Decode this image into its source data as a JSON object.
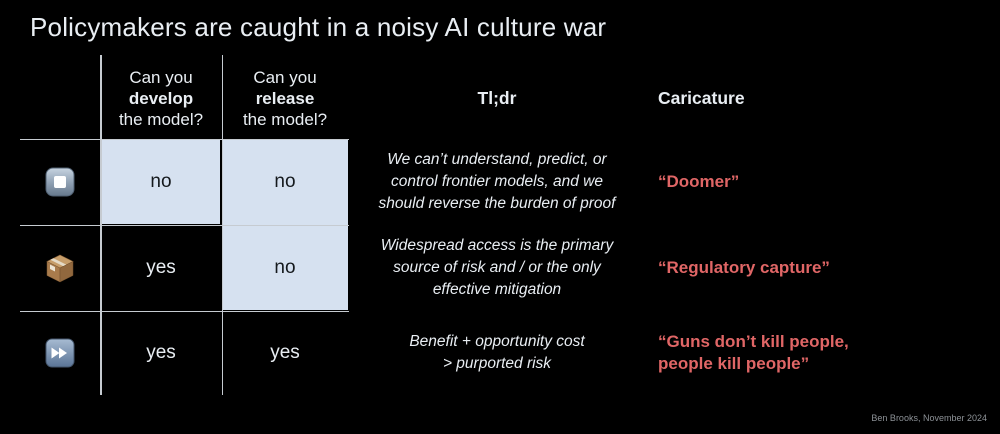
{
  "title": "Policymakers are caught in a noisy AI culture war",
  "credit": "Ben Brooks, November 2024",
  "colors": {
    "background": "#000000",
    "text": "#e9eef3",
    "highlight_cell": "#d6e1f0",
    "caricature_text": "#e06666",
    "grid_line": "#c6cbd1"
  },
  "table": {
    "headers": {
      "develop": {
        "pre": "Can you",
        "emph": "develop",
        "post": "the model?"
      },
      "release": {
        "pre": "Can you",
        "emph": "release",
        "post": "the model?"
      },
      "tldr": "Tl;dr",
      "caricature": "Caricature"
    },
    "rows": [
      {
        "icon": "stop-button-emoji",
        "develop": "no",
        "develop_highlight": true,
        "release": "no",
        "release_highlight": true,
        "tldr_lines": [
          "We can’t understand, predict, or",
          "control frontier models, and we",
          "should reverse the burden of proof"
        ],
        "caricature_lines": [
          "“Doomer”"
        ]
      },
      {
        "icon": "package-emoji",
        "develop": "yes",
        "develop_highlight": false,
        "release": "no",
        "release_highlight": true,
        "tldr_lines": [
          "Widespread access is the primary",
          "source of risk and / or the only",
          "effective mitigation"
        ],
        "caricature_lines": [
          "“Regulatory capture”"
        ]
      },
      {
        "icon": "fast-forward-emoji",
        "develop": "yes",
        "develop_highlight": false,
        "release": "yes",
        "release_highlight": false,
        "tldr_lines": [
          "Benefit + opportunity cost",
          "> purported risk"
        ],
        "caricature_lines": [
          "“Guns don’t kill people,",
          "people kill people”"
        ]
      }
    ]
  }
}
